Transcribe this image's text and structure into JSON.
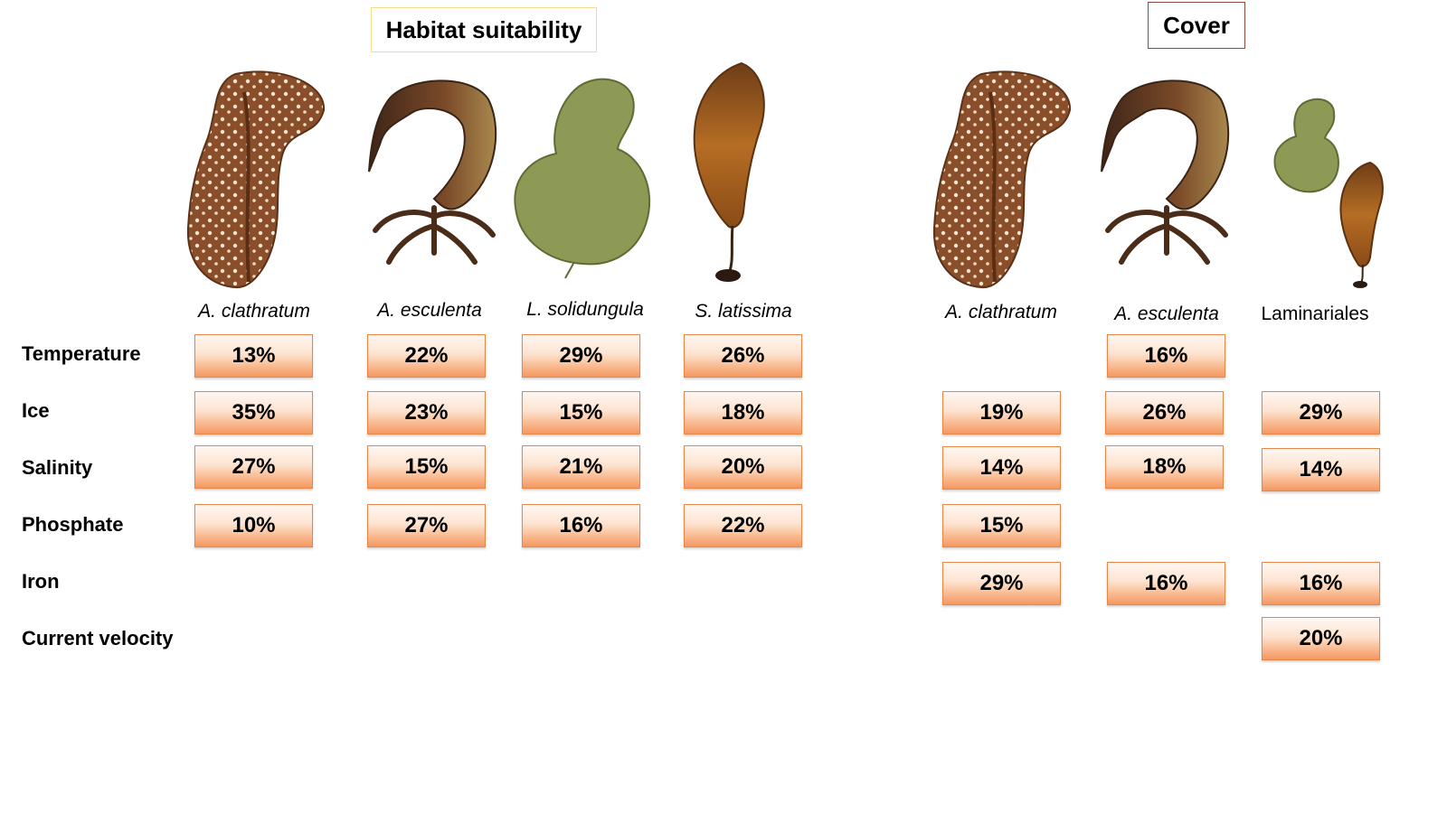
{
  "titles": {
    "habitat": "Habitat suitability",
    "cover": "Cover"
  },
  "rows": [
    "Temperature",
    "Ice",
    "Salinity",
    "Phosphate",
    "Iron",
    "Current velocity"
  ],
  "habitat": {
    "species": [
      "A. clathratum",
      "A. esculenta",
      "L. solidungula",
      "S. latissima"
    ],
    "values": {
      "temperature": [
        "13%",
        "22%",
        "29%",
        "26%"
      ],
      "ice": [
        "35%",
        "23%",
        "15%",
        "18%"
      ],
      "salinity": [
        "27%",
        "15%",
        "21%",
        "20%"
      ],
      "phosphate": [
        "10%",
        "27%",
        "16%",
        "22%"
      ]
    }
  },
  "cover": {
    "species": [
      "A. clathratum",
      "A. esculenta",
      "Laminariales"
    ],
    "values": {
      "temperature": [
        "",
        "16%",
        ""
      ],
      "ice": [
        "19%",
        "26%",
        "29%"
      ],
      "salinity": [
        "14%",
        "18%",
        "14%"
      ],
      "phosphate": [
        "15%",
        "",
        ""
      ],
      "iron": [
        "29%",
        "16%",
        "16%"
      ],
      "current_velocity": [
        "",
        "",
        "20%"
      ]
    }
  },
  "colors": {
    "box_border": "#e8864a",
    "box_fill_top": "#fff7f2",
    "box_fill_bottom": "#f39863",
    "habitat_title_border": "#f3dc8a",
    "cover_title_border": "#8b4a3d"
  }
}
